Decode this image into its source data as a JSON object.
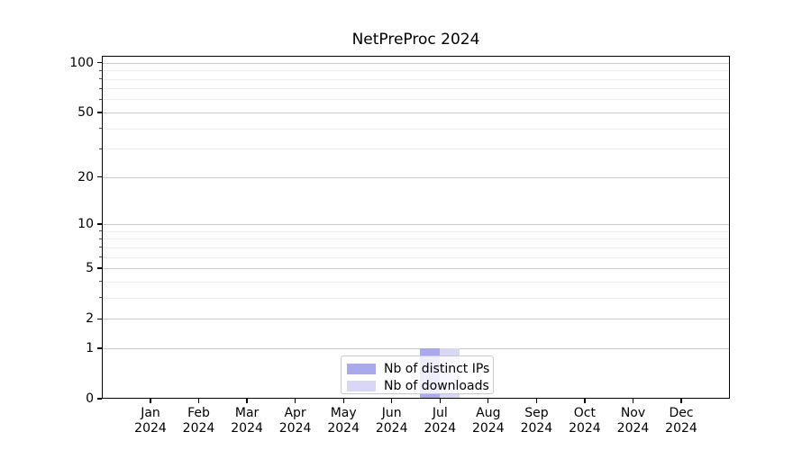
{
  "chart_data": {
    "type": "bar",
    "title": "NetPreProc 2024",
    "categories": [
      "Jan",
      "Feb",
      "Mar",
      "Apr",
      "May",
      "Jun",
      "Jul",
      "Aug",
      "Sep",
      "Oct",
      "Nov",
      "Dec"
    ],
    "category_year": "2024",
    "series": [
      {
        "name": "Nb of distinct IPs",
        "color": "#a9a9ec",
        "values": [
          0,
          0,
          0,
          0,
          0,
          0,
          1,
          0,
          0,
          0,
          0,
          0
        ]
      },
      {
        "name": "Nb of downloads",
        "color": "#d8d8f6",
        "values": [
          0,
          0,
          0,
          0,
          0,
          0,
          1,
          0,
          0,
          0,
          0,
          0
        ]
      }
    ],
    "yscale": "log1p",
    "ylim": [
      0,
      110
    ],
    "yticks": [
      0,
      1,
      2,
      5,
      10,
      20,
      50,
      100
    ],
    "yticks_minor": [
      3,
      4,
      6,
      7,
      8,
      9,
      30,
      40,
      60,
      70,
      80,
      90
    ],
    "grid": true,
    "legend_position": "lower center",
    "colors": {
      "grid_major": "#c9c9c9",
      "grid_minor": "#ececec",
      "axis": "#000000",
      "background": "#ffffff"
    }
  }
}
